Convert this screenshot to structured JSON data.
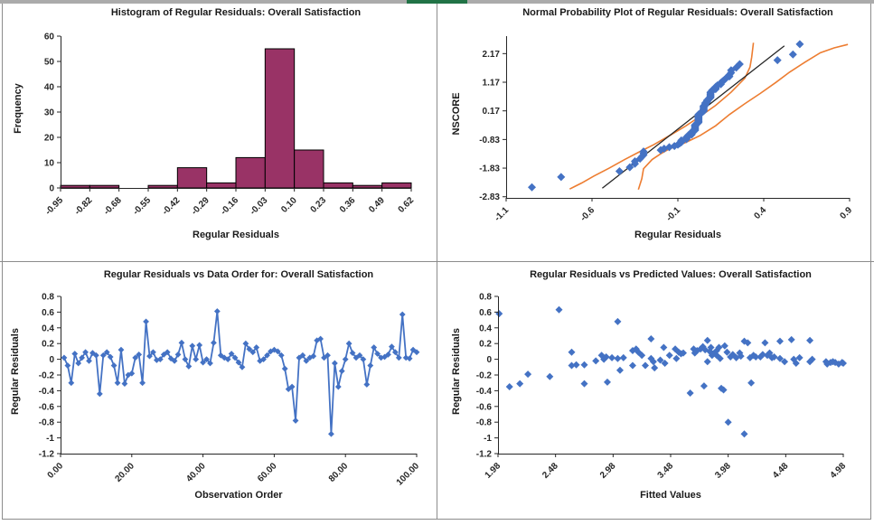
{
  "window": {
    "top_bar_color": "#ababab",
    "accent_color": "#217346",
    "divider_color": "#8c8c8c",
    "background": "#ffffff"
  },
  "palette": {
    "bar_fill": "#993366",
    "bar_border": "#000000",
    "marker_blue": "#4472C4",
    "band_orange": "#ED7D31",
    "ref_line": "#262626",
    "axis": "#262626"
  },
  "chart_data": [
    {
      "id": "histogram",
      "type": "bar",
      "title": "Histogram of Regular Residuals: Overall Satisfaction",
      "xlabel": "Regular Residuals",
      "ylabel": "Frequency",
      "x_ticks": [
        "-0.95",
        "-0.82",
        "-0.68",
        "-0.55",
        "-0.42",
        "-0.29",
        "-0.16",
        "-0.03",
        "0.10",
        "0.23",
        "0.36",
        "0.49",
        "0.62"
      ],
      "y_ticks": [
        "0",
        "10",
        "20",
        "30",
        "40",
        "50",
        "60"
      ],
      "ylim": [
        0,
        60
      ],
      "counts": [
        1,
        1,
        0,
        1,
        8,
        2,
        12,
        55,
        15,
        2,
        1,
        2
      ],
      "grid": false,
      "legend": "none"
    },
    {
      "id": "normal-probability",
      "type": "scatter",
      "title": "Normal Probability Plot of Regular Residuals: Overall Satisfaction",
      "xlabel": "Regular Residuals",
      "ylabel": "NSCORE",
      "x_ticks": [
        "-1.1",
        "-0.6",
        "-0.1",
        "0.4",
        "0.9"
      ],
      "y_ticks": [
        "2.17",
        "1.17",
        "0.17",
        "-0.83",
        "-1.83",
        "-2.83"
      ],
      "xlim": [
        -1.1,
        0.9
      ],
      "ylim": [
        -2.87,
        2.78
      ],
      "nscores": [
        -2.5,
        -2.14,
        -1.94,
        -1.8,
        -1.68,
        -1.59,
        -1.5,
        -1.43,
        -1.37,
        -1.31,
        -1.25,
        -1.2,
        -1.15,
        -1.1,
        -1.06,
        -1.01,
        -0.97,
        -0.93,
        -0.89,
        -0.86,
        -0.82,
        -0.79,
        -0.75,
        -0.72,
        -0.69,
        -0.66,
        -0.63,
        -0.6,
        -0.57,
        -0.54,
        -0.51,
        -0.48,
        -0.45,
        -0.43,
        -0.4,
        -0.37,
        -0.34,
        -0.32,
        -0.29,
        -0.27,
        -0.24,
        -0.21,
        -0.19,
        -0.16,
        -0.14,
        -0.11,
        -0.09,
        -0.06,
        -0.04,
        -0.01,
        0.01,
        0.04,
        0.06,
        0.09,
        0.11,
        0.14,
        0.16,
        0.19,
        0.21,
        0.24,
        0.27,
        0.29,
        0.32,
        0.34,
        0.37,
        0.4,
        0.43,
        0.45,
        0.48,
        0.51,
        0.54,
        0.57,
        0.6,
        0.63,
        0.66,
        0.69,
        0.72,
        0.75,
        0.79,
        0.82,
        0.86,
        0.89,
        0.93,
        0.97,
        1.01,
        1.06,
        1.1,
        1.15,
        1.2,
        1.25,
        1.31,
        1.37,
        1.43,
        1.5,
        1.59,
        1.68,
        1.8,
        1.94,
        2.14,
        2.5
      ],
      "ref_line": [
        [
          -0.54,
          -2.53
        ],
        [
          0.52,
          2.44
        ]
      ],
      "band_upper": [
        [
          -0.73,
          -2.56
        ],
        [
          -0.66,
          -2.35
        ],
        [
          -0.59,
          -2.11
        ],
        [
          -0.5,
          -1.83
        ],
        [
          -0.41,
          -1.53
        ],
        [
          -0.33,
          -1.28
        ],
        [
          -0.24,
          -1.01
        ],
        [
          -0.15,
          -0.7
        ],
        [
          -0.06,
          -0.38
        ],
        [
          0.03,
          -0.02
        ],
        [
          0.12,
          0.36
        ],
        [
          0.21,
          0.82
        ],
        [
          0.29,
          1.31
        ],
        [
          0.32,
          1.7
        ],
        [
          0.33,
          2.05
        ],
        [
          0.34,
          2.55
        ]
      ],
      "band_lower": [
        [
          -0.33,
          -2.58
        ],
        [
          -0.31,
          -2.2
        ],
        [
          -0.3,
          -1.85
        ],
        [
          -0.25,
          -1.53
        ],
        [
          -0.2,
          -1.33
        ],
        [
          -0.15,
          -1.16
        ],
        [
          -0.06,
          -0.95
        ],
        [
          0.03,
          -0.69
        ],
        [
          0.12,
          -0.35
        ],
        [
          0.2,
          0.04
        ],
        [
          0.29,
          0.42
        ],
        [
          0.38,
          0.78
        ],
        [
          0.47,
          1.16
        ],
        [
          0.55,
          1.52
        ],
        [
          0.64,
          1.87
        ],
        [
          0.73,
          2.2
        ],
        [
          0.81,
          2.37
        ],
        [
          0.89,
          2.49
        ]
      ],
      "grid": false,
      "legend": "none"
    },
    {
      "id": "data-order",
      "type": "line",
      "title": "Regular Residuals vs Data Order for: Overall Satisfaction",
      "xlabel": "Observation Order",
      "ylabel": "Regular Residuals",
      "x_ticks": [
        "0.00",
        "20.00",
        "40.00",
        "60.00",
        "80.00",
        "100.00"
      ],
      "y_ticks": [
        "0.8",
        "0.6",
        "0.4",
        "0.2",
        "0",
        "-0.2",
        "-0.4",
        "-0.6",
        "-0.8",
        "-1",
        "-1.2"
      ],
      "xlim": [
        0,
        100
      ],
      "ylim": [
        -1.2,
        0.8
      ],
      "residuals": [
        0.02,
        -0.08,
        -0.3,
        0.07,
        -0.05,
        0.02,
        0.09,
        -0.02,
        0.08,
        0.05,
        -0.44,
        0.05,
        0.09,
        0.03,
        -0.08,
        -0.3,
        0.12,
        -0.31,
        -0.2,
        -0.18,
        0.02,
        0.06,
        -0.3,
        0.48,
        0.04,
        0.09,
        -0.01,
        0.0,
        0.06,
        0.09,
        0.01,
        -0.02,
        0.06,
        0.21,
        0.0,
        -0.09,
        0.17,
        0.0,
        0.18,
        -0.04,
        0.0,
        -0.05,
        0.21,
        0.61,
        0.05,
        0.02,
        0.0,
        0.07,
        0.02,
        -0.04,
        -0.1,
        0.2,
        0.13,
        0.09,
        0.15,
        -0.02,
        0.0,
        0.05,
        0.1,
        0.12,
        0.1,
        0.05,
        -0.12,
        -0.38,
        -0.35,
        -0.78,
        0.02,
        0.05,
        -0.02,
        0.02,
        0.04,
        0.24,
        0.26,
        0.02,
        0.05,
        -0.95,
        -0.05,
        -0.35,
        -0.15,
        0.0,
        0.2,
        0.08,
        0.02,
        0.05,
        0.0,
        -0.32,
        -0.08,
        0.15,
        0.07,
        0.02,
        0.03,
        0.06,
        0.16,
        0.09,
        0.02,
        0.57,
        0.02,
        0.01,
        0.12,
        0.09
      ],
      "grid": false,
      "legend": "none"
    },
    {
      "id": "predicted-values",
      "type": "scatter",
      "title": "Regular Residuals vs Predicted Values: Overall Satisfaction",
      "xlabel": "Fitted Values",
      "ylabel": "Regular Residuals",
      "x_ticks": [
        "1.98",
        "2.48",
        "2.98",
        "3.48",
        "3.98",
        "4.48",
        "4.98"
      ],
      "y_ticks": [
        "0.8",
        "0.6",
        "0.4",
        "0.2",
        "0",
        "-0.2",
        "-0.4",
        "-0.6",
        "-0.8",
        "-1",
        "-1.2"
      ],
      "xlim": [
        1.98,
        4.98
      ],
      "ylim": [
        -1.2,
        0.8
      ],
      "points": [
        [
          1.99,
          0.58
        ],
        [
          2.08,
          -0.35
        ],
        [
          2.17,
          -0.31
        ],
        [
          2.24,
          -0.19
        ],
        [
          2.43,
          -0.22
        ],
        [
          2.51,
          0.63
        ],
        [
          2.62,
          0.09
        ],
        [
          2.62,
          -0.08
        ],
        [
          2.66,
          -0.07
        ],
        [
          2.73,
          -0.07
        ],
        [
          2.73,
          -0.31
        ],
        [
          2.83,
          -0.02
        ],
        [
          2.88,
          0.05
        ],
        [
          2.9,
          0.0
        ],
        [
          2.92,
          0.03
        ],
        [
          2.93,
          -0.29
        ],
        [
          2.97,
          0.02
        ],
        [
          3.02,
          0.48
        ],
        [
          3.02,
          0.01
        ],
        [
          3.04,
          -0.14
        ],
        [
          3.07,
          0.02
        ],
        [
          3.15,
          -0.08
        ],
        [
          3.15,
          0.11
        ],
        [
          3.18,
          0.13
        ],
        [
          3.2,
          0.09
        ],
        [
          3.23,
          0.05
        ],
        [
          3.26,
          -0.08
        ],
        [
          3.31,
          0.26
        ],
        [
          3.31,
          0.01
        ],
        [
          3.33,
          -0.03
        ],
        [
          3.34,
          -0.11
        ],
        [
          3.39,
          -0.01
        ],
        [
          3.42,
          0.15
        ],
        [
          3.43,
          -0.05
        ],
        [
          3.47,
          0.05
        ],
        [
          3.52,
          0.13
        ],
        [
          3.53,
          0.01
        ],
        [
          3.55,
          0.09
        ],
        [
          3.57,
          0.07
        ],
        [
          3.59,
          0.08
        ],
        [
          3.65,
          -0.43
        ],
        [
          3.68,
          0.13
        ],
        [
          3.69,
          0.08
        ],
        [
          3.71,
          0.11
        ],
        [
          3.74,
          0.13
        ],
        [
          3.76,
          0.16
        ],
        [
          3.77,
          -0.34
        ],
        [
          3.78,
          0.12
        ],
        [
          3.8,
          -0.03
        ],
        [
          3.8,
          0.24
        ],
        [
          3.82,
          0.1
        ],
        [
          3.83,
          0.15
        ],
        [
          3.84,
          0.05
        ],
        [
          3.85,
          0.07
        ],
        [
          3.88,
          0.05
        ],
        [
          3.88,
          0.11
        ],
        [
          3.9,
          0.15
        ],
        [
          3.91,
          0.01
        ],
        [
          3.92,
          -0.37
        ],
        [
          3.94,
          -0.39
        ],
        [
          3.95,
          0.17
        ],
        [
          3.97,
          0.09
        ],
        [
          3.98,
          -0.8
        ],
        [
          4.0,
          0.03
        ],
        [
          4.02,
          0.06
        ],
        [
          4.05,
          0.02
        ],
        [
          4.08,
          0.08
        ],
        [
          4.09,
          0.04
        ],
        [
          4.12,
          -0.95
        ],
        [
          4.12,
          0.23
        ],
        [
          4.15,
          0.21
        ],
        [
          4.17,
          0.02
        ],
        [
          4.18,
          -0.3
        ],
        [
          4.2,
          0.05
        ],
        [
          4.22,
          0.03
        ],
        [
          4.26,
          0.03
        ],
        [
          4.28,
          0.06
        ],
        [
          4.3,
          0.21
        ],
        [
          4.32,
          0.05
        ],
        [
          4.34,
          0.08
        ],
        [
          4.36,
          0.02
        ],
        [
          4.38,
          0.03
        ],
        [
          4.43,
          0.23
        ],
        [
          4.43,
          0.01
        ],
        [
          4.47,
          -0.03
        ],
        [
          4.53,
          0.25
        ],
        [
          4.55,
          0.0
        ],
        [
          4.57,
          -0.05
        ],
        [
          4.6,
          0.02
        ],
        [
          4.69,
          0.24
        ],
        [
          4.69,
          -0.03
        ],
        [
          4.71,
          0.0
        ],
        [
          4.83,
          -0.03
        ],
        [
          4.84,
          -0.06
        ],
        [
          4.87,
          -0.04
        ],
        [
          4.89,
          -0.03
        ],
        [
          4.91,
          -0.04
        ],
        [
          4.94,
          -0.06
        ],
        [
          4.97,
          -0.04
        ],
        [
          4.98,
          -0.05
        ]
      ],
      "grid": false,
      "legend": "none"
    }
  ]
}
